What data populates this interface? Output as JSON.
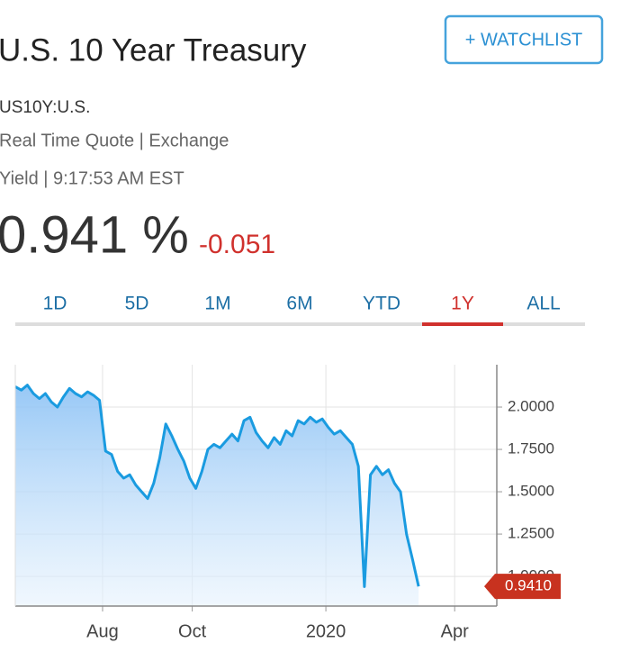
{
  "header": {
    "title": "U.S. 10 Year Treasury",
    "watchlist": "+ WATCHLIST",
    "symbol": "US10Y:U.S.",
    "quote_type": "Real Time Quote | Exchange",
    "yield_time": "Yield | 9:17:53 AM EST",
    "price": "0.941 %",
    "change": "-0.051"
  },
  "tabs": [
    "1D",
    "5D",
    "1M",
    "6M",
    "YTD",
    "1Y",
    "ALL"
  ],
  "active_tab": "1Y",
  "chart_data": {
    "type": "line",
    "color": "#1a9be0",
    "values": [
      2.12,
      2.1,
      2.13,
      2.08,
      2.05,
      2.08,
      2.03,
      2.0,
      2.06,
      2.11,
      2.08,
      2.06,
      2.09,
      2.07,
      2.04,
      1.74,
      1.72,
      1.62,
      1.58,
      1.6,
      1.54,
      1.5,
      1.46,
      1.55,
      1.7,
      1.9,
      1.83,
      1.75,
      1.68,
      1.58,
      1.52,
      1.62,
      1.75,
      1.78,
      1.76,
      1.8,
      1.84,
      1.8,
      1.92,
      1.94,
      1.85,
      1.8,
      1.76,
      1.82,
      1.78,
      1.86,
      1.83,
      1.92,
      1.9,
      1.94,
      1.91,
      1.93,
      1.88,
      1.84,
      1.86,
      1.82,
      1.78,
      1.65,
      0.94,
      1.6,
      1.65,
      1.6,
      1.63,
      1.55,
      1.5,
      1.25,
      1.1,
      0.941
    ],
    "value_labels": [
      null,
      null,
      null,
      null,
      null,
      null,
      null,
      null,
      null,
      null,
      null,
      null,
      null,
      null,
      null,
      null,
      null,
      null,
      null,
      null,
      null,
      null,
      null,
      null,
      null,
      null,
      null,
      null,
      null,
      null,
      null,
      null,
      null,
      null,
      null,
      null,
      null,
      null,
      null,
      null,
      null,
      null,
      null,
      null,
      null,
      null,
      null,
      null,
      null,
      null,
      null,
      null,
      null,
      null,
      null,
      null,
      null,
      null,
      null,
      null,
      null,
      null,
      null,
      null,
      null,
      null,
      null,
      "0.9410"
    ],
    "xlim": [
      0,
      80
    ],
    "xticks": [
      {
        "value": 14.5,
        "label": "Aug"
      },
      {
        "value": 29.4,
        "label": "Oct"
      },
      {
        "value": 51.6,
        "label": "2020"
      },
      {
        "value": 73.0,
        "label": "Apr"
      }
    ],
    "ylim": [
      0.825,
      2.25
    ],
    "yticks": [
      {
        "value": 1.0,
        "label": "1.0000"
      },
      {
        "value": 1.25,
        "label": "1.2500"
      },
      {
        "value": 1.5,
        "label": "1.5000"
      },
      {
        "value": 1.75,
        "label": "1.7500"
      },
      {
        "value": 2.0,
        "label": "2.0000"
      }
    ],
    "grid": true
  }
}
